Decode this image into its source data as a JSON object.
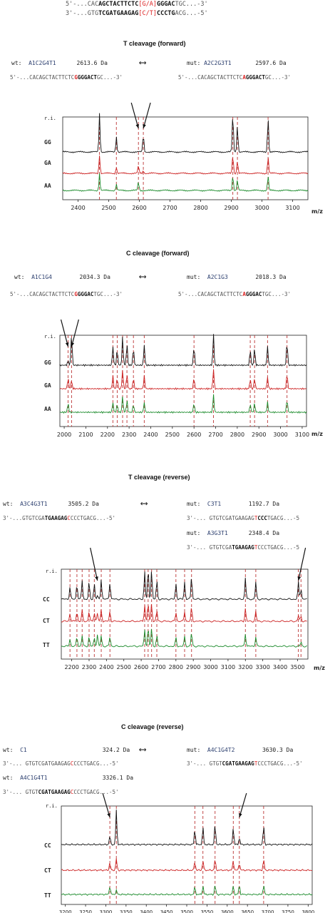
{
  "header": {
    "top_line_prefix": "5'-...CAC",
    "top_line_bold": "AGCTACTTCTC",
    "top_line_red": "[G/A]",
    "top_line_bold2": "GGGAC",
    "top_line_suffix": "TGC...-3'",
    "bot_line_prefix": "3'-...GTG",
    "bot_line_bold": "TCGATGAAGAG",
    "bot_line_red": "[C/T]",
    "bot_line_bold2": "CCCTG",
    "bot_line_suffix": "ACG...-5'"
  },
  "panels": [
    {
      "title": "T cleavage (forward)",
      "annotations": [
        {
          "kind": "wt",
          "tag": "wt:",
          "name": "A1C2G4T1",
          "mass": "2613.6 Da"
        },
        {
          "kind": "mut",
          "tag": "mut:",
          "name": "A2C2G3T1",
          "mass": "2597.6 Da"
        }
      ],
      "seqs": [
        {
          "pre": "5'-...CACAGCTACTTCTC",
          "red": "G",
          "bold": "GGGACT",
          "post": "GC...-3'"
        },
        {
          "pre": "5'-...CACAGCTACTTCTC",
          "red": "A",
          "bold": "GGGACT",
          "post": "GC...-3'"
        }
      ]
    },
    {
      "title": "C cleavage (forward)",
      "annotations": [
        {
          "kind": "wt",
          "tag": "wt:",
          "name": "A1C1G4",
          "mass": "2034.3 Da"
        },
        {
          "kind": "mut",
          "tag": "mut:",
          "name": "A2C1G3",
          "mass": "2018.3 Da"
        }
      ],
      "seqs": [
        {
          "pre": "5'-...CACAGCTACTTCTC",
          "red": "G",
          "bold": "GGGAC",
          "post": "TGC...-3'"
        },
        {
          "pre": "5'-...CACAGCTACTTCTC",
          "red": "A",
          "bold": "GGGAC",
          "post": "TGC...-3'"
        }
      ]
    },
    {
      "title": "T cleavage (reverse)",
      "annotations": [
        {
          "kind": "wt",
          "tag": "wt:",
          "name": "A3C4G3T1",
          "mass": "3505.2 Da"
        },
        {
          "kind": "mut",
          "tag": "mut:",
          "name": "C3T1",
          "mass": "1192.7 Da"
        },
        {
          "kind": "mut",
          "tag": "mut:",
          "name": "A3G3T1",
          "mass": "2348.4 Da"
        }
      ],
      "seqs": [
        {
          "pre": "3'-...GTGTCGA",
          "bold": "TGAAGAG",
          "red": "C",
          "post": "CCCTGACG...-5'"
        },
        {
          "pre": "3'-... GTGTCGATGAAGAG",
          "red": "T",
          "bold": "CCC",
          "post": "TGACG...-5"
        },
        {
          "pre": "3'-... GTGTCGA",
          "bold": "TGAAGAG",
          "red": "T",
          "post": "CCCTGACG...-5"
        }
      ]
    },
    {
      "title": "C cleavage (reverse)",
      "annotations": [
        {
          "kind": "wt",
          "tag": "wt:",
          "name": "C1",
          "mass": "324.2 Da"
        },
        {
          "kind": "mut",
          "tag": "mut:",
          "name": "A4C1G4T2",
          "mass": "3630.3 Da"
        },
        {
          "kind": "wt",
          "tag": "wt:",
          "name": "A4C1G4T1",
          "mass": "3326.1 Da"
        }
      ],
      "seqs": [
        {
          "pre": "3'-... GTGTCGATGAAGAG",
          "red": "C",
          "bold": "",
          "post": "CCCTGACG...-5'"
        },
        {
          "pre": "3'-... GTGT",
          "bold": "CGATGAAGAG",
          "red": "T",
          "post": "CCCTGACG...-5'"
        },
        {
          "pre": "3'-... GTGT",
          "bold": "CGATGAAGAG",
          "red": "C",
          "post": "CCCTGACG...-5'"
        }
      ]
    }
  ],
  "chart_data": [
    {
      "type": "line",
      "title": "T cleavage (forward)",
      "xlabel": "m/z",
      "ylabel": "r.i.",
      "xlim": [
        2350,
        3150
      ],
      "xticks": [
        2400,
        2500,
        2600,
        2700,
        2800,
        2900,
        3000,
        3100
      ],
      "series": [
        {
          "name": "GG",
          "color": "#111111",
          "peaks": [
            [
              2470,
              1.0
            ],
            [
              2525,
              0.4
            ],
            [
              2613,
              0.45
            ],
            [
              2905,
              1.0
            ],
            [
              2920,
              0.7
            ],
            [
              3020,
              0.9
            ]
          ]
        },
        {
          "name": "GA",
          "color": "#cc2222",
          "peaks": [
            [
              2470,
              1.0
            ],
            [
              2525,
              0.35
            ],
            [
              2597,
              0.4
            ],
            [
              2613,
              0.15
            ],
            [
              2905,
              1.0
            ],
            [
              2920,
              0.7
            ],
            [
              3020,
              0.9
            ]
          ]
        },
        {
          "name": "AA",
          "color": "#1a8a2a",
          "peaks": [
            [
              2470,
              1.0
            ],
            [
              2525,
              0.35
            ],
            [
              2597,
              0.5
            ],
            [
              2905,
              0.9
            ],
            [
              2920,
              0.6
            ],
            [
              3020,
              0.85
            ]
          ]
        }
      ],
      "markers": [
        2470,
        2525,
        2597,
        2613,
        2905,
        2920,
        3020
      ],
      "arrows_at": [
        2597,
        2613
      ]
    },
    {
      "type": "line",
      "title": "C cleavage (forward)",
      "xlabel": "m/z",
      "ylabel": "r.i.",
      "xlim": [
        1980,
        3120
      ],
      "xticks": [
        2000,
        2100,
        2200,
        2300,
        2400,
        2500,
        2600,
        2700,
        2800,
        2900,
        3000,
        3100
      ],
      "series": [
        {
          "name": "GG",
          "color": "#111111",
          "peaks": [
            [
              2018,
              0.15
            ],
            [
              2034,
              1.0
            ],
            [
              2225,
              0.6
            ],
            [
              2245,
              0.5
            ],
            [
              2270,
              0.9
            ],
            [
              2290,
              0.7
            ],
            [
              2320,
              0.55
            ],
            [
              2370,
              0.65
            ],
            [
              2600,
              0.6
            ],
            [
              2690,
              1.0
            ],
            [
              2860,
              0.5
            ],
            [
              2880,
              0.55
            ],
            [
              2940,
              0.6
            ],
            [
              3030,
              0.75
            ]
          ]
        },
        {
          "name": "GA",
          "color": "#cc2222",
          "peaks": [
            [
              2018,
              0.5
            ],
            [
              2034,
              0.4
            ],
            [
              2225,
              0.6
            ],
            [
              2245,
              0.5
            ],
            [
              2270,
              0.9
            ],
            [
              2290,
              0.7
            ],
            [
              2320,
              0.5
            ],
            [
              2370,
              0.6
            ],
            [
              2600,
              0.5
            ],
            [
              2690,
              0.95
            ],
            [
              2860,
              0.45
            ],
            [
              2880,
              0.5
            ],
            [
              2940,
              0.55
            ],
            [
              3030,
              0.7
            ]
          ]
        },
        {
          "name": "AA",
          "color": "#1a8a2a",
          "peaks": [
            [
              2018,
              0.45
            ],
            [
              2225,
              0.5
            ],
            [
              2245,
              0.4
            ],
            [
              2270,
              0.8
            ],
            [
              2290,
              0.6
            ],
            [
              2320,
              0.4
            ],
            [
              2370,
              0.5
            ],
            [
              2600,
              0.45
            ],
            [
              2690,
              0.9
            ],
            [
              2860,
              0.4
            ],
            [
              2880,
              0.45
            ],
            [
              2940,
              0.5
            ],
            [
              3030,
              0.65
            ]
          ]
        }
      ],
      "markers": [
        2018,
        2034,
        2225,
        2245,
        2270,
        2290,
        2320,
        2370,
        2600,
        2690,
        2860,
        2880,
        2940,
        3030
      ],
      "arrows_at": [
        2018,
        2034
      ]
    },
    {
      "type": "line",
      "title": "T cleavage (reverse)",
      "xlabel": "m/z",
      "ylabel": "r.i.",
      "xlim": [
        2140,
        3560
      ],
      "xticks": [
        2200,
        2300,
        2400,
        2500,
        2600,
        2700,
        2800,
        2900,
        3000,
        3100,
        3200,
        3300,
        3400,
        3500
      ],
      "series": [
        {
          "name": "CC",
          "color": "#111111",
          "peaks": [
            [
              2190,
              0.4
            ],
            [
              2230,
              0.5
            ],
            [
              2260,
              0.6
            ],
            [
              2300,
              0.55
            ],
            [
              2330,
              0.5
            ],
            [
              2348,
              0.1
            ],
            [
              2370,
              0.65
            ],
            [
              2420,
              0.55
            ],
            [
              2620,
              0.9
            ],
            [
              2640,
              1.0
            ],
            [
              2660,
              0.95
            ],
            [
              2690,
              0.6
            ],
            [
              2800,
              0.5
            ],
            [
              2850,
              0.55
            ],
            [
              2890,
              0.75
            ],
            [
              3200,
              0.7
            ],
            [
              3260,
              0.55
            ],
            [
              3505,
              0.55
            ],
            [
              3520,
              0.35
            ]
          ]
        },
        {
          "name": "CT",
          "color": "#cc2222",
          "peaks": [
            [
              2190,
              0.4
            ],
            [
              2230,
              0.5
            ],
            [
              2260,
              0.55
            ],
            [
              2300,
              0.5
            ],
            [
              2330,
              0.45
            ],
            [
              2348,
              0.4
            ],
            [
              2370,
              0.6
            ],
            [
              2420,
              0.5
            ],
            [
              2620,
              0.85
            ],
            [
              2640,
              0.95
            ],
            [
              2660,
              0.9
            ],
            [
              2690,
              0.55
            ],
            [
              2800,
              0.45
            ],
            [
              2850,
              0.5
            ],
            [
              2890,
              0.7
            ],
            [
              3200,
              0.65
            ],
            [
              3260,
              0.5
            ],
            [
              3505,
              0.3
            ],
            [
              3520,
              0.25
            ]
          ]
        },
        {
          "name": "TT",
          "color": "#1a8a2a",
          "peaks": [
            [
              2190,
              0.35
            ],
            [
              2230,
              0.45
            ],
            [
              2260,
              0.5
            ],
            [
              2300,
              0.45
            ],
            [
              2330,
              0.4
            ],
            [
              2348,
              0.55
            ],
            [
              2370,
              0.5
            ],
            [
              2420,
              0.45
            ],
            [
              2620,
              0.8
            ],
            [
              2640,
              0.9
            ],
            [
              2660,
              0.85
            ],
            [
              2690,
              0.5
            ],
            [
              2800,
              0.4
            ],
            [
              2850,
              0.45
            ],
            [
              2890,
              0.65
            ],
            [
              3200,
              0.6
            ],
            [
              3260,
              0.45
            ],
            [
              3520,
              0.2
            ]
          ]
        }
      ],
      "markers": [
        2190,
        2230,
        2260,
        2300,
        2330,
        2370,
        2420,
        2620,
        2640,
        2660,
        2690,
        2800,
        2850,
        2890,
        3200,
        3260,
        3505,
        3520
      ],
      "arrows_at": [
        2348,
        3505
      ]
    },
    {
      "type": "line",
      "title": "C cleavage (reverse)",
      "xlabel": "m/z",
      "ylabel": "r.i.",
      "xlim": [
        3190,
        3810
      ],
      "xticks": [
        3200,
        3250,
        3300,
        3350,
        3400,
        3450,
        3500,
        3550,
        3600,
        3650,
        3700,
        3750,
        3800
      ],
      "series": [
        {
          "name": "CC",
          "color": "#111111",
          "peaks": [
            [
              3310,
              0.25
            ],
            [
              3326,
              1.0
            ],
            [
              3520,
              0.45
            ],
            [
              3540,
              0.5
            ],
            [
              3570,
              0.6
            ],
            [
              3615,
              0.5
            ],
            [
              3630,
              0.2
            ],
            [
              3690,
              0.55
            ]
          ]
        },
        {
          "name": "CT",
          "color": "#cc2222",
          "peaks": [
            [
              3310,
              0.35
            ],
            [
              3326,
              0.55
            ],
            [
              3520,
              0.4
            ],
            [
              3540,
              0.45
            ],
            [
              3570,
              0.5
            ],
            [
              3615,
              0.45
            ],
            [
              3630,
              0.35
            ],
            [
              3690,
              0.5
            ]
          ]
        },
        {
          "name": "TT",
          "color": "#1a8a2a",
          "peaks": [
            [
              3310,
              0.4
            ],
            [
              3326,
              0.2
            ],
            [
              3520,
              0.35
            ],
            [
              3540,
              0.4
            ],
            [
              3570,
              0.45
            ],
            [
              3615,
              0.4
            ],
            [
              3630,
              0.45
            ],
            [
              3690,
              0.45
            ]
          ]
        }
      ],
      "markers": [
        3310,
        3326,
        3520,
        3540,
        3570,
        3615,
        3630,
        3690
      ],
      "arrows_at": [
        3310,
        3630
      ]
    }
  ]
}
